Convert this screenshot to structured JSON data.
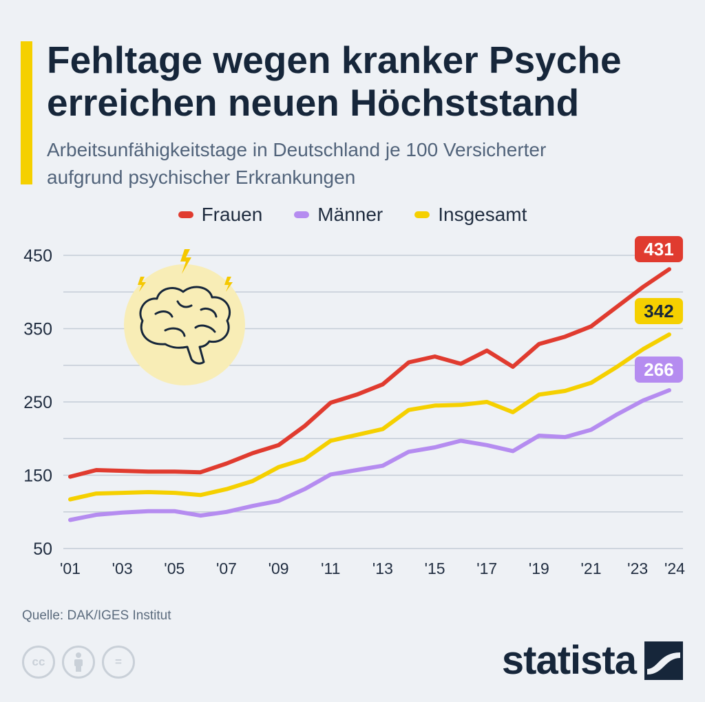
{
  "header": {
    "title_line1": "Fehltage wegen kranker Psyche",
    "title_line2": "erreichen neuen Höchststand",
    "subtitle_line1": "Arbeitsunfähigkeitstage in Deutschland je 100 Versicherter",
    "subtitle_line2": "aufgrund psychischer Erkrankungen",
    "accent_color": "#f5d000"
  },
  "legend": [
    {
      "label": "Frauen",
      "color": "#e03b2f"
    },
    {
      "label": "Männer",
      "color": "#b58cf0"
    },
    {
      "label": "Insgesamt",
      "color": "#f5d000"
    }
  ],
  "illustration": {
    "icon": "brain-icon",
    "background_color": "#f8edb6"
  },
  "chart_data": {
    "type": "line",
    "title": "Fehltage wegen kranker Psyche erreichen neuen Höchststand",
    "subtitle": "Arbeitsunfähigkeitstage in Deutschland je 100 Versicherter aufgrund psychischer Erkrankungen",
    "x": [
      2001,
      2002,
      2003,
      2004,
      2005,
      2006,
      2007,
      2008,
      2009,
      2010,
      2011,
      2012,
      2013,
      2014,
      2015,
      2016,
      2017,
      2018,
      2019,
      2020,
      2021,
      2022,
      2023,
      2024
    ],
    "x_tick_values": [
      2001,
      2003,
      2005,
      2007,
      2009,
      2011,
      2013,
      2015,
      2017,
      2019,
      2021,
      2023,
      2024
    ],
    "x_tick_labels": [
      "'01",
      "'03",
      "'05",
      "'07",
      "'09",
      "'11",
      "'13",
      "'15",
      "'17",
      "'19",
      "'21",
      "'23",
      "'24"
    ],
    "y_ticks": [
      50,
      150,
      250,
      350,
      450
    ],
    "ylim": [
      50,
      450
    ],
    "grid": true,
    "legend_position": "top-center",
    "series": [
      {
        "name": "Frauen",
        "color": "#e03b2f",
        "values": [
          148,
          157,
          156,
          155,
          155,
          154,
          166,
          180,
          191,
          217,
          249,
          260,
          274,
          304,
          312,
          302,
          320,
          298,
          329,
          339,
          353,
          380,
          407,
          431
        ],
        "end_label": "431"
      },
      {
        "name": "Männer",
        "color": "#b58cf0",
        "values": [
          89,
          96,
          99,
          101,
          101,
          95,
          100,
          108,
          115,
          131,
          151,
          157,
          163,
          182,
          188,
          197,
          191,
          183,
          204,
          202,
          212,
          233,
          252,
          266
        ],
        "end_label": "266"
      },
      {
        "name": "Insgesamt",
        "color": "#f5d000",
        "values": [
          117,
          125,
          126,
          127,
          126,
          123,
          131,
          142,
          161,
          172,
          197,
          205,
          213,
          239,
          245,
          246,
          250,
          236,
          260,
          265,
          276,
          298,
          322,
          342
        ],
        "end_label": "342"
      }
    ]
  },
  "footer": {
    "source": "Quelle: DAK/IGES Institut",
    "cc_icons": [
      "cc-icon",
      "attribution-icon",
      "no-derivatives-icon"
    ],
    "cc_label": "cc",
    "cc_equals": "=",
    "brand": "statista",
    "brand_color": "#16263a"
  }
}
